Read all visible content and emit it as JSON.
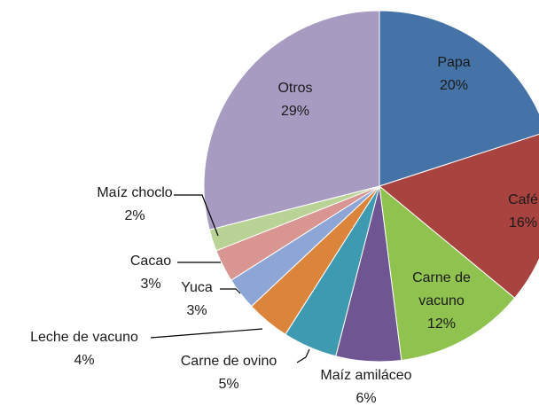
{
  "chart_data": {
    "type": "pie",
    "categories": [
      "Papa",
      "Café",
      "Carne de vacuno",
      "Maíz amiláceo",
      "Carne de ovino",
      "Leche de vacuno",
      "Yuca",
      "Cacao",
      "Maíz choclo",
      "Otros"
    ],
    "values": [
      20,
      16,
      12,
      6,
      5,
      4,
      3,
      3,
      2,
      29
    ],
    "value_labels": [
      "20%",
      "16%",
      "12%",
      "6%",
      "5%",
      "4%",
      "3%",
      "3%",
      "2%",
      "29%"
    ],
    "colors": [
      "#4573a7",
      "#a9433f",
      "#8fc24f",
      "#6f5591",
      "#3e9ab0",
      "#db843c",
      "#8ea6d6",
      "#d99591",
      "#b9d396",
      "#a89bc1"
    ]
  }
}
